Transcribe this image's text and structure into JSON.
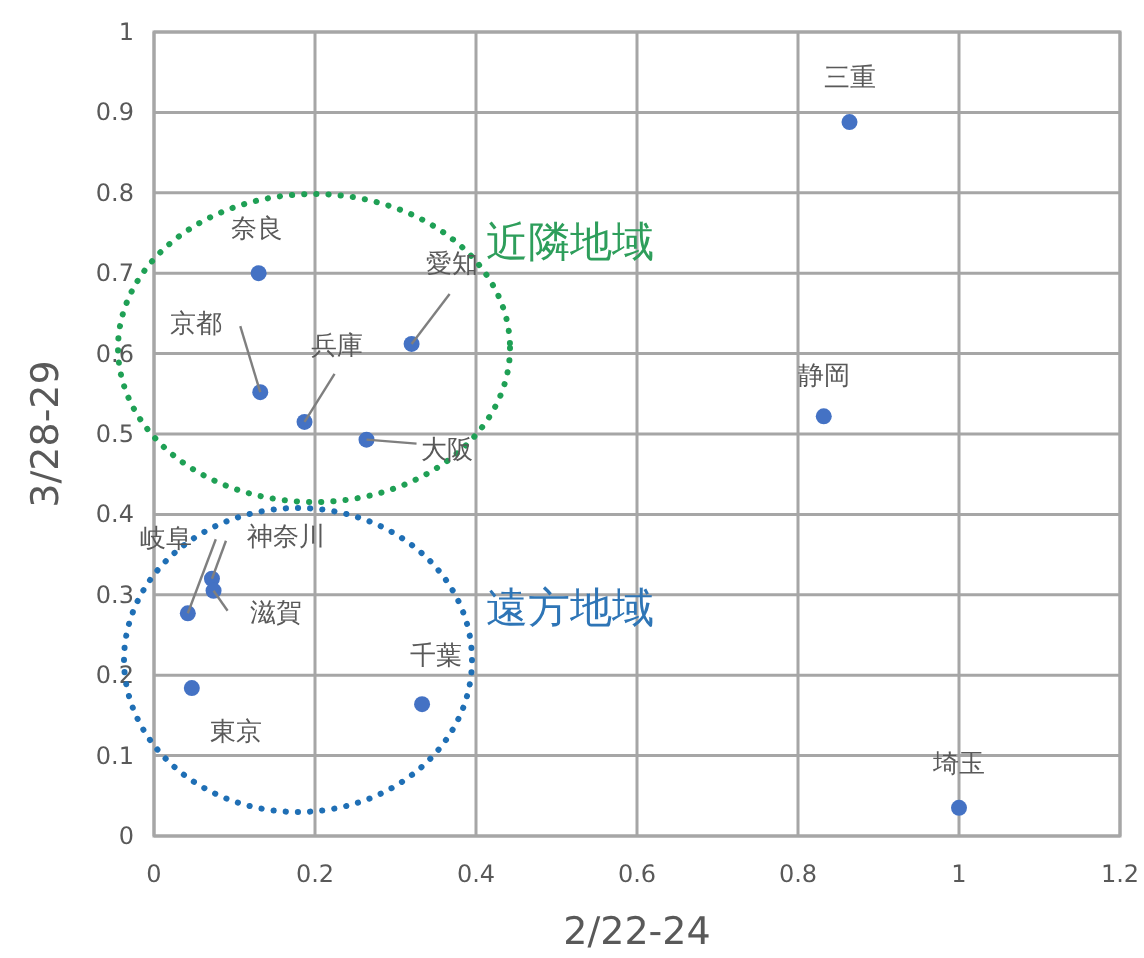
{
  "chart_data": {
    "type": "scatter",
    "xlabel": "2/22-24",
    "ylabel": "3/28-29",
    "x": [
      0.864,
      0.832,
      1.0,
      0.13,
      0.132,
      0.187,
      0.32,
      0.264,
      0.042,
      0.072,
      0.074,
      0.047,
      0.333
    ],
    "series": [
      {
        "color": "#4472c4",
        "values": [
          0.888,
          0.522,
          0.035,
          0.7,
          0.552,
          0.515,
          0.612,
          0.493,
          0.277,
          0.32,
          0.305,
          0.184,
          0.164
        ]
      }
    ],
    "xlim": [
      0,
      1.2
    ],
    "ylim": [
      0,
      1
    ],
    "xticks": [
      0,
      0.2,
      0.4,
      0.6,
      0.8,
      1,
      1.2
    ],
    "yticks": [
      0,
      0.1,
      0.2,
      0.3,
      0.4,
      0.5,
      0.6,
      0.7,
      0.8,
      0.9,
      1
    ],
    "grid": true,
    "marker": "circle",
    "annotations": [
      {
        "text": "三重",
        "x": 0.864,
        "y": 0.888
      },
      {
        "text": "静岡",
        "x": 0.832,
        "y": 0.522
      },
      {
        "text": "埼玉",
        "x": 1.0,
        "y": 0.035
      },
      {
        "text": "奈良",
        "x": 0.13,
        "y": 0.7
      },
      {
        "text": "京都",
        "x": 0.132,
        "y": 0.552
      },
      {
        "text": "兵庫",
        "x": 0.187,
        "y": 0.515
      },
      {
        "text": "愛知",
        "x": 0.32,
        "y": 0.612
      },
      {
        "text": "大阪",
        "x": 0.264,
        "y": 0.493
      },
      {
        "text": "岐阜",
        "x": 0.042,
        "y": 0.277
      },
      {
        "text": "神奈川",
        "x": 0.072,
        "y": 0.32
      },
      {
        "text": "滋賀",
        "x": 0.074,
        "y": 0.305
      },
      {
        "text": "東京",
        "x": 0.047,
        "y": 0.184
      },
      {
        "text": "千葉",
        "x": 0.333,
        "y": 0.164
      },
      "近隣地域",
      "遠方地域"
    ]
  }
}
